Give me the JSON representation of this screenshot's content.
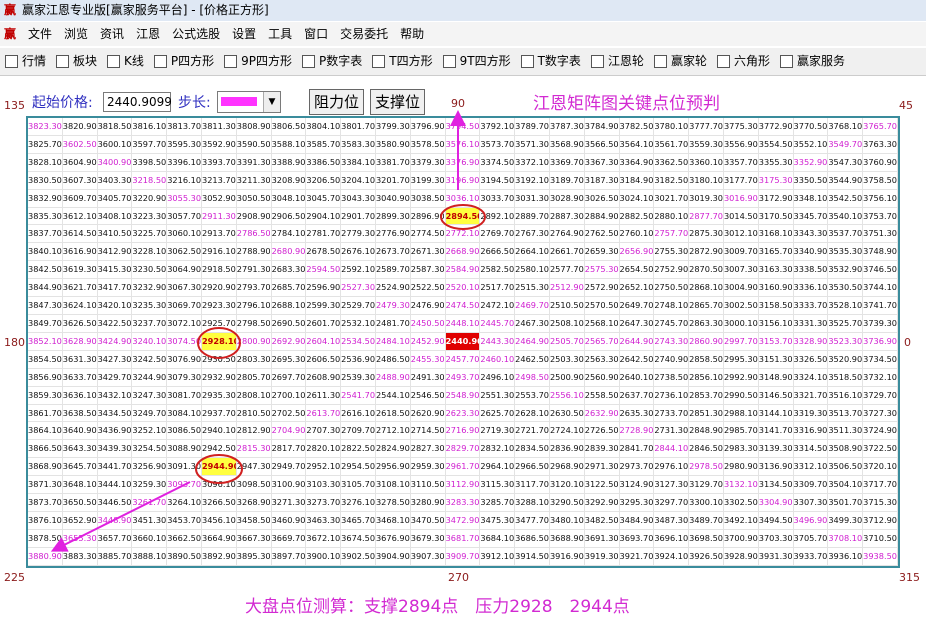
{
  "window": {
    "logo": "赢",
    "title": "赢家江恩专业版[赢家服务平台] - [价格正方形]"
  },
  "menu": [
    "文件",
    "浏览",
    "资讯",
    "江恩",
    "公式选股",
    "设置",
    "工具",
    "窗口",
    "交易委托",
    "帮助"
  ],
  "toolbar": [
    "行情",
    "板块",
    "K线",
    "P四方形",
    "9P四方形",
    "P数字表",
    "T四方形",
    "9T四方形",
    "T数字表",
    "江恩轮",
    "赢家轮",
    "六角形",
    "赢家服务"
  ],
  "controls": {
    "start_label": "起始价格:",
    "start_value": "2440.9099",
    "step_label": "步长:",
    "buttons": [
      "阻力位",
      "支撑位"
    ]
  },
  "heading": "江恩矩阵图关键点位预判",
  "angles": {
    "top_left": "135",
    "top": "90",
    "top_right": "45",
    "left": "180",
    "right": "0",
    "bottom_left": "225",
    "bottom": "270",
    "bottom_right": "315"
  },
  "grid": {
    "rows": [
      [
        "3823.30",
        "3820.90",
        "3818.50",
        "3816.10",
        "3813.70",
        "3811.30",
        "3808.90",
        "3806.50",
        "3804.10",
        "3801.70",
        "3799.30",
        "3796.90",
        "3794.50",
        "3792.10",
        "3789.70",
        "3787.30",
        "3784.90",
        "3782.50",
        "3780.10",
        "3777.70",
        "3775.30",
        "3772.90",
        "3770.50",
        "3768.10",
        "3765.70"
      ],
      [
        "3825.70",
        "3602.50",
        "3600.10",
        "3597.70",
        "3595.30",
        "3592.90",
        "3590.50",
        "3588.10",
        "3585.70",
        "3583.30",
        "3580.90",
        "3578.50",
        "3576.10",
        "3573.70",
        "3571.30",
        "3568.90",
        "3566.50",
        "3564.10",
        "3561.70",
        "3559.30",
        "3556.90",
        "3554.50",
        "3552.10",
        "3549.70",
        "3763.30"
      ],
      [
        "3828.10",
        "3604.90",
        "3400.90",
        "3398.50",
        "3396.10",
        "3393.70",
        "3391.30",
        "3388.90",
        "3386.50",
        "3384.10",
        "3381.70",
        "3379.30",
        "3376.90",
        "3374.50",
        "3372.10",
        "3369.70",
        "3367.30",
        "3364.90",
        "3362.50",
        "3360.10",
        "3357.70",
        "3355.30",
        "3352.90",
        "3547.30",
        "3760.90"
      ],
      [
        "3830.50",
        "3607.30",
        "3403.30",
        "3218.50",
        "3216.10",
        "3213.70",
        "3211.30",
        "3208.90",
        "3206.50",
        "3204.10",
        "3201.70",
        "3199.30",
        "3196.90",
        "3194.50",
        "3192.10",
        "3189.70",
        "3187.30",
        "3184.90",
        "3182.50",
        "3180.10",
        "3177.70",
        "3175.30",
        "3350.50",
        "3544.90",
        "3758.50"
      ],
      [
        "3832.90",
        "3609.70",
        "3405.70",
        "3220.90",
        "3055.30",
        "3052.90",
        "3050.50",
        "3048.10",
        "3045.70",
        "3043.30",
        "3040.90",
        "3038.50",
        "3036.10",
        "3033.70",
        "3031.30",
        "3028.90",
        "3026.50",
        "3024.10",
        "3021.70",
        "3019.30",
        "3016.90",
        "3172.90",
        "3348.10",
        "3542.50",
        "3756.10"
      ],
      [
        "3835.30",
        "3612.10",
        "3408.10",
        "3223.30",
        "3057.70",
        "2911.30",
        "2908.90",
        "2906.50",
        "2904.10",
        "2901.70",
        "2899.30",
        "2896.90",
        "2894.50",
        "2892.10",
        "2889.70",
        "2887.30",
        "2884.90",
        "2882.50",
        "2880.10",
        "2877.70",
        "3014.50",
        "3170.50",
        "3345.70",
        "3540.10",
        "3753.70"
      ],
      [
        "3837.70",
        "3614.50",
        "3410.50",
        "3225.70",
        "3060.10",
        "2913.70",
        "2786.50",
        "2784.10",
        "2781.70",
        "2779.30",
        "2776.90",
        "2774.50",
        "2772.10",
        "2769.70",
        "2767.30",
        "2764.90",
        "2762.50",
        "2760.10",
        "2757.70",
        "2875.30",
        "3012.10",
        "3168.10",
        "3343.30",
        "3537.70",
        "3751.30"
      ],
      [
        "3840.10",
        "3616.90",
        "3412.90",
        "3228.10",
        "3062.50",
        "2916.10",
        "2788.90",
        "2680.90",
        "2678.50",
        "2676.10",
        "2673.70",
        "2671.30",
        "2668.90",
        "2666.50",
        "2664.10",
        "2661.70",
        "2659.30",
        "2656.90",
        "2755.30",
        "2872.90",
        "3009.70",
        "3165.70",
        "3340.90",
        "3535.30",
        "3748.90"
      ],
      [
        "3842.50",
        "3619.30",
        "3415.30",
        "3230.50",
        "3064.90",
        "2918.50",
        "2791.30",
        "2683.30",
        "2594.50",
        "2592.10",
        "2589.70",
        "2587.30",
        "2584.90",
        "2582.50",
        "2580.10",
        "2577.70",
        "2575.30",
        "2654.50",
        "2752.90",
        "2870.50",
        "3007.30",
        "3163.30",
        "3338.50",
        "3532.90",
        "3746.50"
      ],
      [
        "3844.90",
        "3621.70",
        "3417.70",
        "3232.90",
        "3067.30",
        "2920.90",
        "2793.70",
        "2685.70",
        "2596.90",
        "2527.30",
        "2524.90",
        "2522.50",
        "2520.10",
        "2517.70",
        "2515.30",
        "2512.90",
        "2572.90",
        "2652.10",
        "2750.50",
        "2868.10",
        "3004.90",
        "3160.90",
        "3336.10",
        "3530.50",
        "3744.10"
      ],
      [
        "3847.30",
        "3624.10",
        "3420.10",
        "3235.30",
        "3069.70",
        "2923.30",
        "2796.10",
        "2688.10",
        "2599.30",
        "2529.70",
        "2479.30",
        "2476.90",
        "2474.50",
        "2472.10",
        "2469.70",
        "2510.50",
        "2570.50",
        "2649.70",
        "2748.10",
        "2865.70",
        "3002.50",
        "3158.50",
        "3333.70",
        "3528.10",
        "3741.70"
      ],
      [
        "3849.70",
        "3626.50",
        "3422.50",
        "3237.70",
        "3072.10",
        "2925.70",
        "2798.50",
        "2690.50",
        "2601.70",
        "2532.10",
        "2481.70",
        "2450.50",
        "2448.10",
        "2445.70",
        "2467.30",
        "2508.10",
        "2568.10",
        "2647.30",
        "2745.70",
        "2863.30",
        "3000.10",
        "3156.10",
        "3331.30",
        "3525.70",
        "3739.30"
      ],
      [
        "3852.10",
        "3628.90",
        "3424.90",
        "3240.10",
        "3074.50",
        "2928.10",
        "2800.90",
        "2692.90",
        "2604.10",
        "2534.50",
        "2484.10",
        "2452.90",
        "2440.90",
        "2443.30",
        "2464.90",
        "2505.70",
        "2565.70",
        "2644.90",
        "2743.30",
        "2860.90",
        "2997.70",
        "3153.70",
        "3328.90",
        "3523.30",
        "3736.90"
      ],
      [
        "3854.50",
        "3631.30",
        "3427.30",
        "3242.50",
        "3076.90",
        "2930.50",
        "2803.30",
        "2695.30",
        "2606.50",
        "2536.90",
        "2486.50",
        "2455.30",
        "2457.70",
        "2460.10",
        "2462.50",
        "2503.30",
        "2563.30",
        "2642.50",
        "2740.90",
        "2858.50",
        "2995.30",
        "3151.30",
        "3326.50",
        "3520.90",
        "3734.50"
      ],
      [
        "3856.90",
        "3633.70",
        "3429.70",
        "3244.90",
        "3079.30",
        "2932.90",
        "2805.70",
        "2697.70",
        "2608.90",
        "2539.30",
        "2488.90",
        "2491.30",
        "2493.70",
        "2496.10",
        "2498.50",
        "2500.90",
        "2560.90",
        "2640.10",
        "2738.50",
        "2856.10",
        "2992.90",
        "3148.90",
        "3324.10",
        "3518.50",
        "3732.10"
      ],
      [
        "3859.30",
        "3636.10",
        "3432.10",
        "3247.30",
        "3081.70",
        "2935.30",
        "2808.10",
        "2700.10",
        "2611.30",
        "2541.70",
        "2544.10",
        "2546.50",
        "2548.90",
        "2551.30",
        "2553.70",
        "2556.10",
        "2558.50",
        "2637.70",
        "2736.10",
        "2853.70",
        "2990.50",
        "3146.50",
        "3321.70",
        "3516.10",
        "3729.70"
      ],
      [
        "3861.70",
        "3638.50",
        "3434.50",
        "3249.70",
        "3084.10",
        "2937.70",
        "2810.50",
        "2702.50",
        "2613.70",
        "2616.10",
        "2618.50",
        "2620.90",
        "2623.30",
        "2625.70",
        "2628.10",
        "2630.50",
        "2632.90",
        "2635.30",
        "2733.70",
        "2851.30",
        "2988.10",
        "3144.10",
        "3319.30",
        "3513.70",
        "3727.30"
      ],
      [
        "3864.10",
        "3640.90",
        "3436.90",
        "3252.10",
        "3086.50",
        "2940.10",
        "2812.90",
        "2704.90",
        "2707.30",
        "2709.70",
        "2712.10",
        "2714.50",
        "2716.90",
        "2719.30",
        "2721.70",
        "2724.10",
        "2726.50",
        "2728.90",
        "2731.30",
        "2848.90",
        "2985.70",
        "3141.70",
        "3316.90",
        "3511.30",
        "3724.90"
      ],
      [
        "3866.50",
        "3643.30",
        "3439.30",
        "3254.50",
        "3088.90",
        "2942.50",
        "2815.30",
        "2817.70",
        "2820.10",
        "2822.50",
        "2824.90",
        "2827.30",
        "2829.70",
        "2832.10",
        "2834.50",
        "2836.90",
        "2839.30",
        "2841.70",
        "2844.10",
        "2846.50",
        "2983.30",
        "3139.30",
        "3314.50",
        "3508.90",
        "3722.50"
      ],
      [
        "3868.90",
        "3645.70",
        "3441.70",
        "3256.90",
        "3091.30",
        "2944.90",
        "2947.30",
        "2949.70",
        "2952.10",
        "2954.50",
        "2956.90",
        "2959.30",
        "2961.70",
        "2964.10",
        "2966.50",
        "2968.90",
        "2971.30",
        "2973.70",
        "2976.10",
        "2978.50",
        "2980.90",
        "3136.90",
        "3312.10",
        "3506.50",
        "3720.10"
      ],
      [
        "3871.30",
        "3648.10",
        "3444.10",
        "3259.30",
        "3093.70",
        "3096.10",
        "3098.50",
        "3100.90",
        "3103.30",
        "3105.70",
        "3108.10",
        "3110.50",
        "3112.90",
        "3115.30",
        "3117.70",
        "3120.10",
        "3122.50",
        "3124.90",
        "3127.30",
        "3129.70",
        "3132.10",
        "3134.50",
        "3309.70",
        "3504.10",
        "3717.70"
      ],
      [
        "3873.70",
        "3650.50",
        "3446.50",
        "3261.70",
        "3264.10",
        "3266.50",
        "3268.90",
        "3271.30",
        "3273.70",
        "3276.10",
        "3278.50",
        "3280.90",
        "3283.30",
        "3285.70",
        "3288.10",
        "3290.50",
        "3292.90",
        "3295.30",
        "3297.70",
        "3300.10",
        "3302.50",
        "3304.90",
        "3307.30",
        "3501.70",
        "3715.30"
      ],
      [
        "3876.10",
        "3652.90",
        "3448.90",
        "3451.30",
        "3453.70",
        "3456.10",
        "3458.50",
        "3460.90",
        "3463.30",
        "3465.70",
        "3468.10",
        "3470.50",
        "3472.90",
        "3475.30",
        "3477.70",
        "3480.10",
        "3482.50",
        "3484.90",
        "3487.30",
        "3489.70",
        "3492.10",
        "3494.50",
        "3496.90",
        "3499.30",
        "3712.90"
      ],
      [
        "3878.50",
        "3655.30",
        "3657.70",
        "3660.10",
        "3662.50",
        "3664.90",
        "3667.30",
        "3669.70",
        "3672.10",
        "3674.50",
        "3676.90",
        "3679.30",
        "3681.70",
        "3684.10",
        "3686.50",
        "3688.90",
        "3691.30",
        "3693.70",
        "3696.10",
        "3698.50",
        "3700.90",
        "3703.30",
        "3705.70",
        "3708.10",
        "3710.50"
      ],
      [
        "3880.90",
        "3883.30",
        "3885.70",
        "3888.10",
        "3890.50",
        "3892.90",
        "3895.30",
        "3897.70",
        "3900.10",
        "3902.50",
        "3904.90",
        "3907.30",
        "3909.70",
        "3912.10",
        "3914.50",
        "3916.90",
        "3919.30",
        "3921.70",
        "3924.10",
        "3926.50",
        "3928.90",
        "3931.30",
        "3933.70",
        "3936.10",
        "3938.50"
      ]
    ]
  },
  "footer": "大盘点位测算：支撑2894点　压力2928　2944点"
}
